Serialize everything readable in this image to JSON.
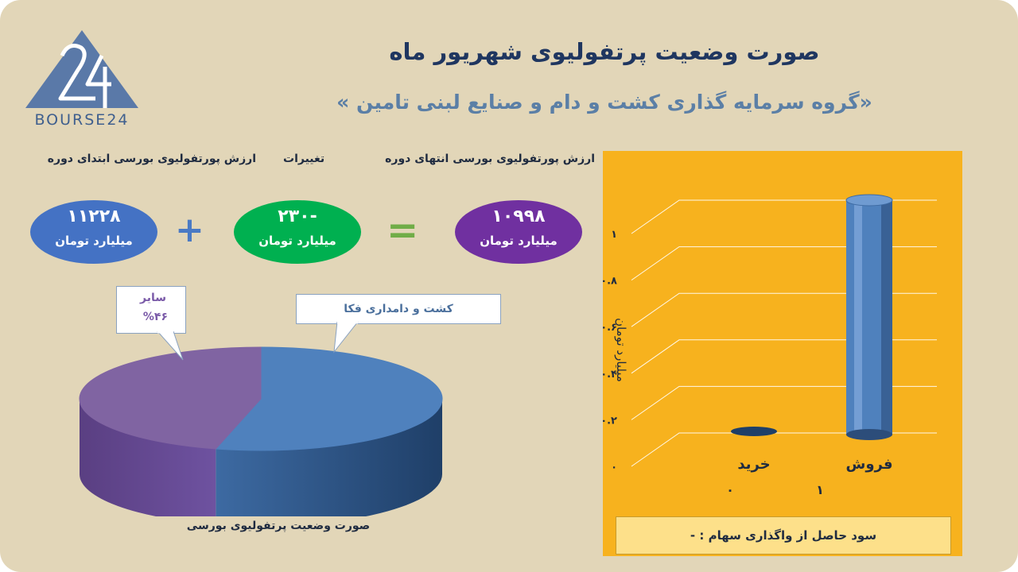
{
  "header": {
    "title": "صورت وضعیت پرتفولیوی شهریور ماه",
    "subtitle": "«گروه سرمایه گذاری کشت و دام و صنایع لبنی تامین »"
  },
  "logo": {
    "text": "BOURSE24",
    "mark": "24"
  },
  "summary": {
    "start_label": "ارزش پورتفولیوی بورسی ابتدای دوره",
    "change_label": "تغییرات",
    "end_label": "ارزش پورتفولیوی بورسی انتهای دوره",
    "start_value": "۱۱۲۲۸",
    "change_value": "-۲۳۰",
    "end_value": "۱۰۹۹۸",
    "unit": "میلیارد تومان",
    "plus_symbol": "+",
    "equals_symbol": "="
  },
  "colors": {
    "background": "#e2d6b8",
    "start_oval": "#4472c4",
    "change_oval": "#00b050",
    "end_oval": "#7030a0",
    "operator": "#4a7ac4",
    "equals": "#70ad47",
    "pie_blue": "#4f81bd",
    "pie_purple": "#8064a2",
    "chart_panel": "#f7b21e",
    "bar": "#4f81bd"
  },
  "pie": {
    "caption": "صورت وضعیت پرتفولیوی بورسی",
    "callout_main": "کشت و دامداری فکا",
    "callout_other_name": "سایر",
    "callout_other_pct": "%۴۶"
  },
  "chart_data": [
    {
      "type": "pie",
      "title": "صورت وضعیت پرتفولیوی بورسی",
      "slices": [
        {
          "name": "کشت و دامداری فکا",
          "value": 54,
          "color": "#4f81bd"
        },
        {
          "name": "سایر",
          "value": 46,
          "color": "#8064a2"
        }
      ]
    },
    {
      "type": "bar",
      "categories": [
        "خرید",
        "فروش"
      ],
      "values": [
        0,
        1
      ],
      "value_labels": [
        "۰",
        "۱"
      ],
      "ylabel": "میلیارد تومان",
      "ylim": [
        0,
        1
      ],
      "yticks": [
        0,
        0.2,
        0.4,
        0.6,
        0.8,
        1
      ],
      "ytick_labels": [
        "۰",
        "۰.۲",
        "۰.۴",
        "۰.۶",
        "۰.۸",
        "۱"
      ],
      "grid": true
    }
  ],
  "footnote": "سود حاصل از واگذاری سهام : -"
}
